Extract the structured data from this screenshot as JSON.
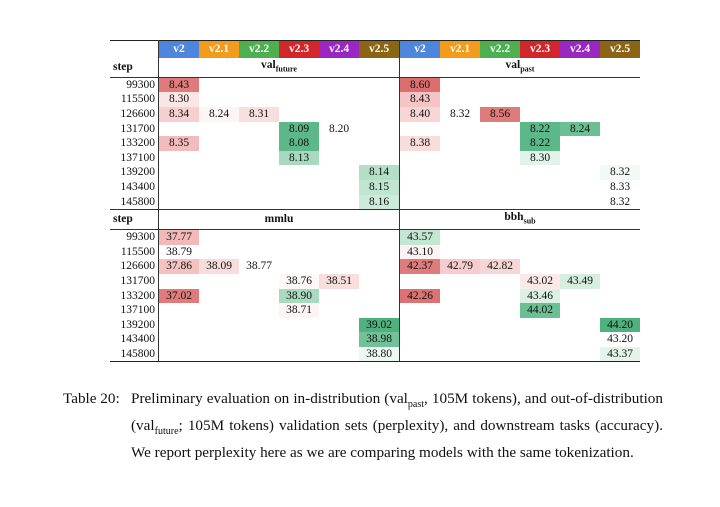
{
  "versions": [
    {
      "name": "v2",
      "color": "#4f86dd"
    },
    {
      "name": "v2.1",
      "color": "#f39c1b"
    },
    {
      "name": "v2.2",
      "color": "#4caf50"
    },
    {
      "name": "v2.3",
      "color": "#d3262a"
    },
    {
      "name": "v2.4",
      "color": "#9b27c2"
    },
    {
      "name": "v2.5",
      "color": "#8b6414"
    }
  ],
  "sections": [
    {
      "step_label": "step",
      "groups": [
        {
          "name": "val",
          "sub": "future"
        },
        {
          "name": "val",
          "sub": "past"
        }
      ],
      "rows": [
        {
          "step": "99300",
          "cells": [
            "8.43",
            null,
            null,
            null,
            null,
            null,
            "8.60",
            null,
            null,
            null,
            null,
            null
          ],
          "colors": [
            "#e07b7b",
            null,
            null,
            null,
            null,
            null,
            "#dc6e6e",
            null,
            null,
            null,
            null,
            null
          ]
        },
        {
          "step": "115500",
          "cells": [
            "8.30",
            null,
            null,
            null,
            null,
            null,
            "8.43",
            null,
            null,
            null,
            null,
            null
          ],
          "colors": [
            "#fbe6e6",
            null,
            null,
            null,
            null,
            null,
            "#f5c4c4",
            null,
            null,
            null,
            null,
            null
          ]
        },
        {
          "step": "126600",
          "cells": [
            "8.34",
            "8.24",
            "8.31",
            null,
            null,
            null,
            "8.40",
            "8.32",
            "8.56",
            null,
            null,
            null
          ],
          "colors": [
            "#f6cfcf",
            "#fdf5f5",
            "#f9dede",
            null,
            null,
            null,
            "#f8d6d6",
            null,
            "#e07b7b",
            null,
            null,
            null
          ]
        },
        {
          "step": "131700",
          "cells": [
            null,
            null,
            null,
            "8.09",
            "8.20",
            null,
            null,
            null,
            null,
            "8.22",
            "8.24",
            null
          ],
          "colors": [
            null,
            null,
            null,
            "#5cb888",
            null,
            null,
            null,
            null,
            null,
            "#5cb888",
            "#6cbf93",
            null
          ]
        },
        {
          "step": "133200",
          "cells": [
            "8.35",
            null,
            null,
            "8.08",
            null,
            null,
            "8.38",
            null,
            null,
            "8.22",
            null,
            null
          ],
          "colors": [
            "#f3bcbc",
            null,
            null,
            "#5cb888",
            null,
            null,
            "#f9dcdc",
            null,
            null,
            "#5cb888",
            null,
            null
          ]
        },
        {
          "step": "137100",
          "cells": [
            null,
            null,
            null,
            "8.13",
            null,
            null,
            null,
            null,
            null,
            "8.30",
            null,
            null
          ],
          "colors": [
            null,
            null,
            null,
            "#a6d9bd",
            null,
            null,
            null,
            null,
            null,
            "#e2f3e9",
            null,
            null
          ]
        },
        {
          "step": "139200",
          "cells": [
            null,
            null,
            null,
            null,
            null,
            "8.14",
            null,
            null,
            null,
            null,
            null,
            "8.32"
          ],
          "colors": [
            null,
            null,
            null,
            null,
            null,
            "#b3dfc7",
            null,
            null,
            null,
            null,
            null,
            "#f3faf6"
          ]
        },
        {
          "step": "143400",
          "cells": [
            null,
            null,
            null,
            null,
            null,
            "8.15",
            null,
            null,
            null,
            null,
            null,
            "8.33"
          ],
          "colors": [
            null,
            null,
            null,
            null,
            null,
            "#c0e5d1",
            null,
            null,
            null,
            null,
            null,
            null
          ]
        },
        {
          "step": "145800",
          "cells": [
            null,
            null,
            null,
            null,
            null,
            "8.16",
            null,
            null,
            null,
            null,
            null,
            "8.32"
          ],
          "colors": [
            null,
            null,
            null,
            null,
            null,
            "#cdebda",
            null,
            null,
            null,
            null,
            null,
            null
          ]
        }
      ]
    },
    {
      "step_label": "step",
      "groups": [
        {
          "name": "mmlu",
          "sub": null
        },
        {
          "name": "bbh",
          "sub": "sub"
        }
      ],
      "rows": [
        {
          "step": "99300",
          "cells": [
            "37.77",
            null,
            null,
            null,
            null,
            null,
            "43.57",
            null,
            null,
            null,
            null,
            null
          ],
          "colors": [
            "#f3b9b9",
            null,
            null,
            null,
            null,
            null,
            "#c4e7d3",
            null,
            null,
            null,
            null,
            null
          ]
        },
        {
          "step": "115500",
          "cells": [
            "38.79",
            null,
            null,
            null,
            null,
            null,
            "43.10",
            null,
            null,
            null,
            null,
            null
          ],
          "colors": [
            null,
            null,
            null,
            null,
            null,
            null,
            "#fdf3f3",
            null,
            null,
            null,
            null,
            null
          ]
        },
        {
          "step": "126600",
          "cells": [
            "37.86",
            "38.09",
            "38.77",
            null,
            null,
            null,
            "42.37",
            "42.79",
            "42.82",
            null,
            null,
            null
          ],
          "colors": [
            "#f5c2c2",
            "#f9dddd",
            null,
            null,
            null,
            null,
            "#e07b7b",
            "#f6cccc",
            "#f8d6d6",
            null,
            null,
            null
          ]
        },
        {
          "step": "131700",
          "cells": [
            null,
            null,
            null,
            "38.76",
            "38.51",
            null,
            null,
            null,
            null,
            "43.02",
            "43.49",
            null
          ],
          "colors": [
            null,
            null,
            null,
            "#fef8f8",
            "#f9dede",
            null,
            null,
            null,
            null,
            "#fbe9e9",
            "#d5eee0",
            null
          ]
        },
        {
          "step": "133200",
          "cells": [
            "37.02",
            null,
            null,
            "38.90",
            null,
            null,
            "42.26",
            null,
            null,
            "43.46",
            null,
            null
          ],
          "colors": [
            "#e07b7b",
            null,
            null,
            "#a9dabf",
            null,
            null,
            "#dd7272",
            null,
            null,
            "#dcf0e4",
            null,
            null
          ]
        },
        {
          "step": "137100",
          "cells": [
            null,
            null,
            null,
            "38.71",
            null,
            null,
            null,
            null,
            null,
            "44.02",
            null,
            null
          ],
          "colors": [
            null,
            null,
            null,
            "#fdf5f5",
            null,
            null,
            null,
            null,
            null,
            "#6cbf93",
            null,
            null
          ]
        },
        {
          "step": "139200",
          "cells": [
            null,
            null,
            null,
            null,
            null,
            "39.02",
            null,
            null,
            null,
            null,
            null,
            "44.20"
          ],
          "colors": [
            null,
            null,
            null,
            null,
            null,
            "#4fb27e",
            null,
            null,
            null,
            null,
            null,
            "#4fb27e"
          ]
        },
        {
          "step": "143400",
          "cells": [
            null,
            null,
            null,
            null,
            null,
            "38.98",
            null,
            null,
            null,
            null,
            null,
            "43.20"
          ],
          "colors": [
            null,
            null,
            null,
            null,
            null,
            "#72c198",
            null,
            null,
            null,
            null,
            null,
            null
          ]
        },
        {
          "step": "145800",
          "cells": [
            null,
            null,
            null,
            null,
            null,
            "38.80",
            null,
            null,
            null,
            null,
            null,
            "43.37"
          ],
          "colors": [
            null,
            null,
            null,
            null,
            null,
            "#eef8f2",
            null,
            null,
            null,
            null,
            null,
            "#e4f4ea"
          ]
        }
      ]
    }
  ],
  "caption": {
    "label": "Table 20:",
    "parts": [
      "Preliminary evaluation on in-distribution (val",
      "past",
      ", 105M tokens), and out-of-distribution (val",
      "future",
      "; 105M tokens) validation sets (perplexity), and downstream tasks (accuracy). We report perplexity here as we are comparing models with the same tokenization."
    ]
  }
}
